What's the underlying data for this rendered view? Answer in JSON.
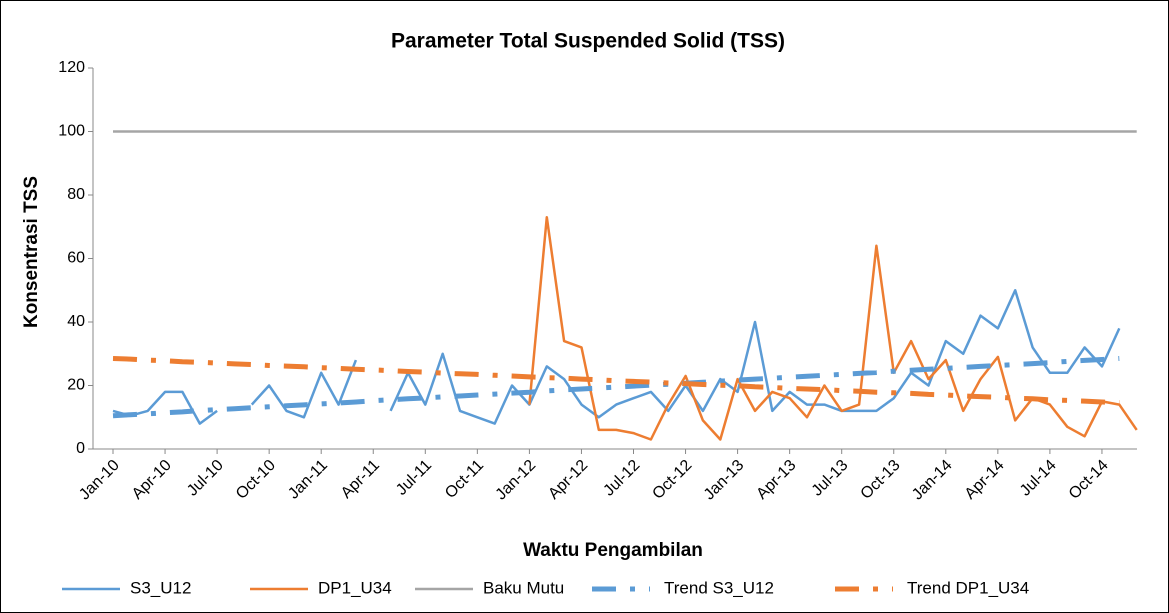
{
  "chart_data": {
    "type": "line",
    "title": "Parameter Total Suspended Solid (TSS)",
    "x_label": "Waktu Pengambilan",
    "y_label": "Konsentrasi TSS",
    "categories": [
      "Jan-10",
      null,
      null,
      "Apr-10",
      null,
      null,
      "Jul-10",
      null,
      null,
      "Oct-10",
      null,
      null,
      "Jan-11",
      null,
      null,
      "Apr-11",
      null,
      null,
      "Jul-11",
      null,
      null,
      "Oct-11",
      null,
      null,
      "Jan-12",
      null,
      null,
      "Apr-12",
      null,
      null,
      "Jul-12",
      null,
      null,
      "Oct-12",
      null,
      null,
      "Jan-13",
      null,
      null,
      "Apr-13",
      null,
      null,
      "Jul-13",
      null,
      null,
      "Oct-13",
      null,
      null,
      "Jan-14",
      null,
      null,
      "Apr-14",
      null,
      null,
      "Jul-14",
      null,
      null,
      "Oct-14",
      null,
      null
    ],
    "ylim": [
      0,
      120
    ],
    "yticks": [
      0,
      20,
      40,
      60,
      80,
      100,
      120
    ],
    "series": [
      {
        "name": "S3_U12",
        "color": "#5b9bd5",
        "dashed": false,
        "values": [
          12,
          10.5,
          12,
          18,
          18,
          8,
          12,
          null,
          14,
          20,
          12,
          10,
          24,
          14,
          28,
          null,
          12,
          24,
          14,
          30,
          12,
          10,
          8,
          20,
          14,
          26,
          22,
          14,
          10,
          14,
          16,
          18,
          12,
          20,
          12,
          22,
          18,
          40,
          12,
          18,
          14,
          14,
          12,
          12,
          12,
          16,
          24,
          20,
          34,
          30,
          42,
          38,
          50,
          32,
          24,
          24,
          32,
          26,
          38,
          null
        ]
      },
      {
        "name": "DP1_U34",
        "color": "#ed7d31",
        "dashed": false,
        "values": [
          null,
          null,
          null,
          null,
          null,
          null,
          null,
          null,
          null,
          null,
          null,
          null,
          null,
          null,
          null,
          null,
          null,
          null,
          null,
          null,
          null,
          null,
          null,
          null,
          14,
          73,
          34,
          32,
          6,
          6,
          5,
          3,
          14,
          23,
          9,
          3,
          22,
          12,
          18,
          16,
          10,
          20,
          12,
          14,
          64,
          24,
          34,
          22,
          28,
          12,
          22,
          29,
          9,
          16,
          14,
          7,
          4,
          15,
          14,
          6
        ]
      },
      {
        "name": "Baku Mutu",
        "color": "#a5a5a5",
        "dashed": false,
        "values": [
          100,
          100,
          100,
          100,
          100,
          100,
          100,
          100,
          100,
          100,
          100,
          100,
          100,
          100,
          100,
          100,
          100,
          100,
          100,
          100,
          100,
          100,
          100,
          100,
          100,
          100,
          100,
          100,
          100,
          100,
          100,
          100,
          100,
          100,
          100,
          100,
          100,
          100,
          100,
          100,
          100,
          100,
          100,
          100,
          100,
          100,
          100,
          100,
          100,
          100,
          100,
          100,
          100,
          100,
          100,
          100,
          100,
          100,
          100,
          100
        ]
      },
      {
        "name": "Trend S3_U12",
        "color": "#5b9bd5",
        "dashed": true,
        "values": [
          10.5,
          10.8,
          11.1,
          11.4,
          11.7,
          12.1,
          12.4,
          12.7,
          13.0,
          13.3,
          13.6,
          13.9,
          14.2,
          14.5,
          14.8,
          15.2,
          15.5,
          15.8,
          16.1,
          16.4,
          16.7,
          17.0,
          17.3,
          17.6,
          17.9,
          18.3,
          18.6,
          18.9,
          19.2,
          19.5,
          19.8,
          20.1,
          20.4,
          20.7,
          21.0,
          21.4,
          21.7,
          22.0,
          22.3,
          22.6,
          22.9,
          23.2,
          23.5,
          23.8,
          24.1,
          24.5,
          24.8,
          25.1,
          25.4,
          25.7,
          26.0,
          26.3,
          26.6,
          26.9,
          27.2,
          27.6,
          27.9,
          28.2,
          28.5,
          null
        ]
      },
      {
        "name": "Trend DP1_U34",
        "color": "#ed7d31",
        "dashed": true,
        "values": [
          28.5,
          28.3,
          28.0,
          27.8,
          27.5,
          27.3,
          27.1,
          26.8,
          26.6,
          26.3,
          26.1,
          25.9,
          25.6,
          25.4,
          25.1,
          24.9,
          24.7,
          24.4,
          24.2,
          23.9,
          23.7,
          23.5,
          23.2,
          23.0,
          22.7,
          22.5,
          22.3,
          22.0,
          21.8,
          21.5,
          21.3,
          21.1,
          20.8,
          20.6,
          20.3,
          20.1,
          19.9,
          19.6,
          19.4,
          19.1,
          18.9,
          18.7,
          18.4,
          18.2,
          17.9,
          17.7,
          17.5,
          17.2,
          17.0,
          16.7,
          16.5,
          16.3,
          16.0,
          15.8,
          15.5,
          15.3,
          15.1,
          14.8,
          14.6,
          null
        ]
      }
    ]
  }
}
